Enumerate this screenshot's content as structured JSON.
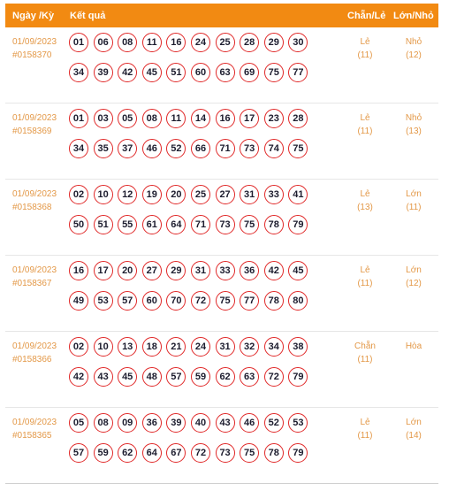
{
  "header": {
    "date_label": "Ngày /Kỳ",
    "result_label": "Kết quả",
    "parity_label": "Chẵn/Lẻ",
    "size_label": "Lớn/Nhỏ"
  },
  "rows": [
    {
      "date": "01/09/2023",
      "period": "#0158370",
      "numbers": [
        "01",
        "06",
        "08",
        "11",
        "16",
        "24",
        "25",
        "28",
        "29",
        "30",
        "34",
        "39",
        "42",
        "45",
        "51",
        "60",
        "63",
        "69",
        "75",
        "77"
      ],
      "parity": "Lẻ",
      "parity_count": "(11)",
      "size": "Nhỏ",
      "size_count": "(12)"
    },
    {
      "date": "01/09/2023",
      "period": "#0158369",
      "numbers": [
        "01",
        "03",
        "05",
        "08",
        "11",
        "14",
        "16",
        "17",
        "23",
        "28",
        "34",
        "35",
        "37",
        "46",
        "52",
        "66",
        "71",
        "73",
        "74",
        "75"
      ],
      "parity": "Lẻ",
      "parity_count": "(11)",
      "size": "Nhỏ",
      "size_count": "(13)"
    },
    {
      "date": "01/09/2023",
      "period": "#0158368",
      "numbers": [
        "02",
        "10",
        "12",
        "19",
        "20",
        "25",
        "27",
        "31",
        "33",
        "41",
        "50",
        "51",
        "55",
        "61",
        "64",
        "71",
        "73",
        "75",
        "78",
        "79"
      ],
      "parity": "Lẻ",
      "parity_count": "(13)",
      "size": "Lớn",
      "size_count": "(11)"
    },
    {
      "date": "01/09/2023",
      "period": "#0158367",
      "numbers": [
        "16",
        "17",
        "20",
        "27",
        "29",
        "31",
        "33",
        "36",
        "42",
        "45",
        "49",
        "53",
        "57",
        "60",
        "70",
        "72",
        "75",
        "77",
        "78",
        "80"
      ],
      "parity": "Lẻ",
      "parity_count": "(11)",
      "size": "Lớn",
      "size_count": "(12)"
    },
    {
      "date": "01/09/2023",
      "period": "#0158366",
      "numbers": [
        "02",
        "10",
        "13",
        "18",
        "21",
        "24",
        "31",
        "32",
        "34",
        "38",
        "42",
        "43",
        "45",
        "48",
        "57",
        "59",
        "62",
        "63",
        "72",
        "79"
      ],
      "parity": "Chẵn",
      "parity_count": "(11)",
      "size": "Hòa",
      "size_count": ""
    },
    {
      "date": "01/09/2023",
      "period": "#0158365",
      "numbers": [
        "05",
        "08",
        "09",
        "36",
        "39",
        "40",
        "43",
        "46",
        "52",
        "53",
        "57",
        "59",
        "62",
        "64",
        "67",
        "72",
        "73",
        "75",
        "78",
        "79"
      ],
      "parity": "Lẻ",
      "parity_count": "(11)",
      "size": "Lớn",
      "size_count": "(14)"
    }
  ]
}
